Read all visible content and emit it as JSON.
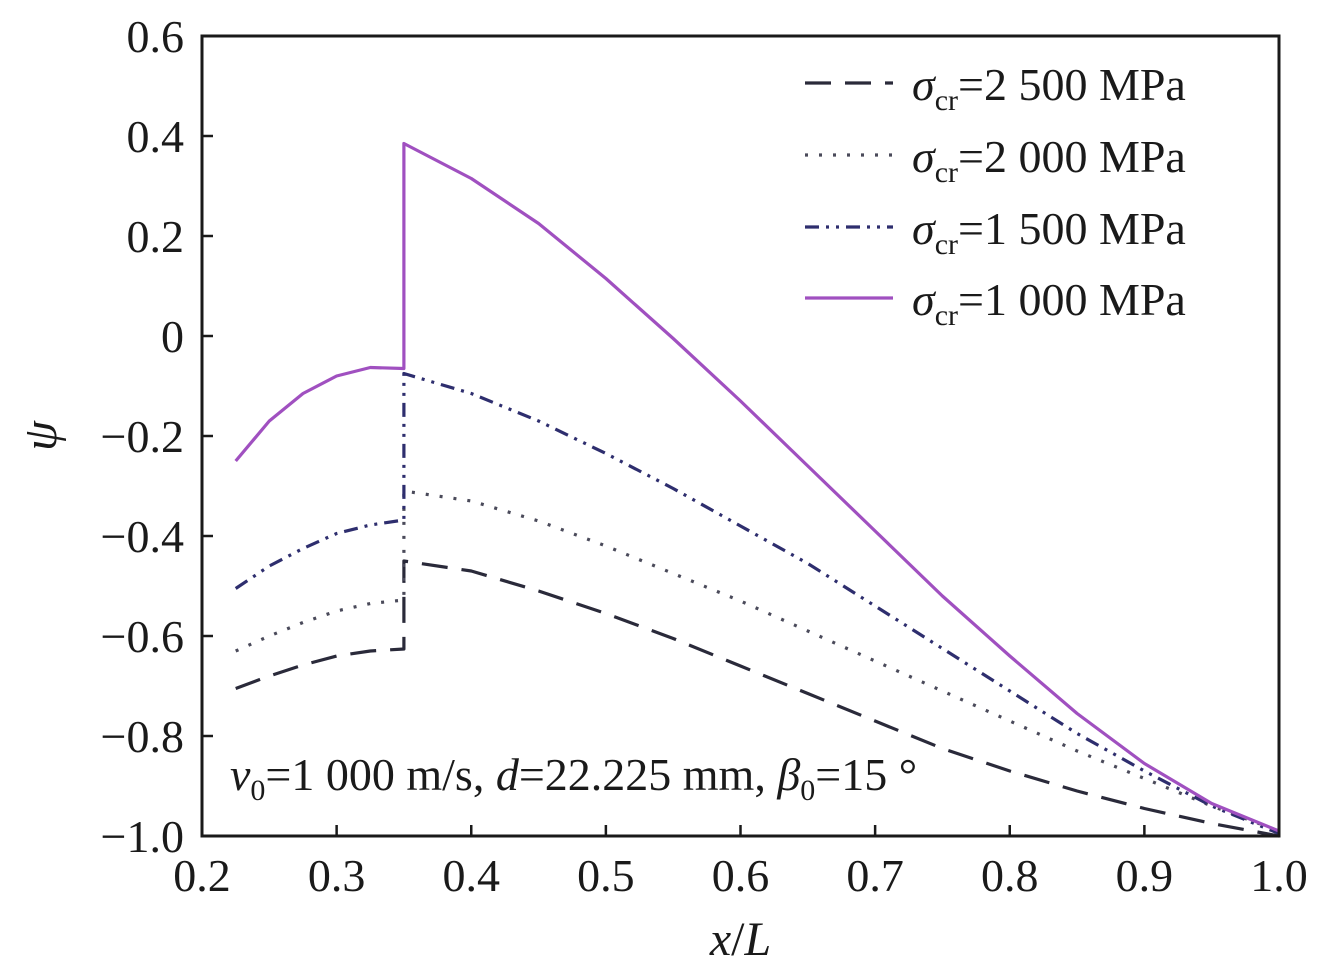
{
  "chart_data": {
    "type": "line",
    "xlabel_var": "x",
    "xlabel_sep": "/",
    "xlabel_ref": "L",
    "ylabel": "ψ",
    "xlim": [
      0.2,
      1.0
    ],
    "ylim": [
      -1.0,
      0.6
    ],
    "x_ticks": [
      0.2,
      0.3,
      0.4,
      0.5,
      0.6,
      0.7,
      0.8,
      0.9,
      1.0
    ],
    "x_tick_labels": [
      "0.2",
      "0.3",
      "0.4",
      "0.5",
      "0.6",
      "0.7",
      "0.8",
      "0.9",
      "1.0"
    ],
    "y_ticks": [
      0.6,
      0.4,
      0.2,
      0,
      -0.2,
      -0.4,
      -0.6,
      -0.8,
      -1.0
    ],
    "y_tick_labels": [
      "0.6",
      "0.4",
      "0.2",
      "0",
      "−0.2",
      "−0.4",
      "−0.6",
      "−0.8",
      "−1.0"
    ],
    "grid": false,
    "legend_position": "top-right",
    "series": [
      {
        "legend_symbol": "σ",
        "legend_sub": "cr",
        "legend_value": "=2 500 MPa",
        "color": "#2a2a3a",
        "dash": "26 14",
        "points": [
          [
            0.225,
            -0.705
          ],
          [
            0.25,
            -0.68
          ],
          [
            0.275,
            -0.658
          ],
          [
            0.3,
            -0.64
          ],
          [
            0.325,
            -0.63
          ],
          [
            0.35,
            -0.626
          ],
          [
            0.35,
            -0.45
          ],
          [
            0.4,
            -0.47
          ],
          [
            0.45,
            -0.51
          ],
          [
            0.5,
            -0.555
          ],
          [
            0.55,
            -0.605
          ],
          [
            0.6,
            -0.66
          ],
          [
            0.65,
            -0.715
          ],
          [
            0.7,
            -0.77
          ],
          [
            0.75,
            -0.825
          ],
          [
            0.8,
            -0.87
          ],
          [
            0.85,
            -0.91
          ],
          [
            0.9,
            -0.945
          ],
          [
            0.95,
            -0.975
          ],
          [
            1.0,
            -1.0
          ]
        ]
      },
      {
        "legend_symbol": "σ",
        "legend_sub": "cr",
        "legend_value": "=2 000 MPa",
        "color": "#4a4a5a",
        "dash": "3 11",
        "points": [
          [
            0.225,
            -0.63
          ],
          [
            0.25,
            -0.6
          ],
          [
            0.275,
            -0.573
          ],
          [
            0.3,
            -0.55
          ],
          [
            0.325,
            -0.535
          ],
          [
            0.35,
            -0.528
          ],
          [
            0.35,
            -0.31
          ],
          [
            0.4,
            -0.33
          ],
          [
            0.45,
            -0.37
          ],
          [
            0.5,
            -0.42
          ],
          [
            0.55,
            -0.475
          ],
          [
            0.6,
            -0.53
          ],
          [
            0.65,
            -0.59
          ],
          [
            0.7,
            -0.65
          ],
          [
            0.75,
            -0.71
          ],
          [
            0.8,
            -0.77
          ],
          [
            0.85,
            -0.83
          ],
          [
            0.9,
            -0.885
          ],
          [
            0.95,
            -0.94
          ],
          [
            1.0,
            -0.99
          ]
        ]
      },
      {
        "legend_symbol": "σ",
        "legend_sub": "cr",
        "legend_value": "=1 500 MPa",
        "color": "#2e2e6e",
        "dash": "14 7 3 7 3 7",
        "points": [
          [
            0.225,
            -0.505
          ],
          [
            0.25,
            -0.46
          ],
          [
            0.275,
            -0.425
          ],
          [
            0.3,
            -0.395
          ],
          [
            0.325,
            -0.378
          ],
          [
            0.35,
            -0.368
          ],
          [
            0.35,
            -0.075
          ],
          [
            0.4,
            -0.115
          ],
          [
            0.45,
            -0.17
          ],
          [
            0.5,
            -0.235
          ],
          [
            0.55,
            -0.305
          ],
          [
            0.6,
            -0.38
          ],
          [
            0.65,
            -0.455
          ],
          [
            0.7,
            -0.54
          ],
          [
            0.75,
            -0.625
          ],
          [
            0.8,
            -0.71
          ],
          [
            0.85,
            -0.795
          ],
          [
            0.9,
            -0.87
          ],
          [
            0.95,
            -0.94
          ],
          [
            1.0,
            -0.995
          ]
        ]
      },
      {
        "legend_symbol": "σ",
        "legend_sub": "cr",
        "legend_value": "=1 000 MPa",
        "color": "#a050c0",
        "dash": "",
        "points": [
          [
            0.225,
            -0.25
          ],
          [
            0.25,
            -0.17
          ],
          [
            0.275,
            -0.115
          ],
          [
            0.3,
            -0.08
          ],
          [
            0.325,
            -0.063
          ],
          [
            0.35,
            -0.065
          ],
          [
            0.35,
            0.385
          ],
          [
            0.4,
            0.315
          ],
          [
            0.45,
            0.225
          ],
          [
            0.5,
            0.115
          ],
          [
            0.55,
            -0.005
          ],
          [
            0.6,
            -0.13
          ],
          [
            0.65,
            -0.26
          ],
          [
            0.7,
            -0.39
          ],
          [
            0.75,
            -0.52
          ],
          [
            0.8,
            -0.64
          ],
          [
            0.85,
            -0.755
          ],
          [
            0.9,
            -0.855
          ],
          [
            0.95,
            -0.935
          ],
          [
            1.0,
            -0.99
          ]
        ]
      }
    ],
    "annotation": {
      "v_sym": "v",
      "v_sub": "0",
      "v_val": "=1 000 m/s, ",
      "d_sym": "d",
      "d_val": "=22.225 mm, ",
      "b_sym": "β",
      "b_sub": "0",
      "b_val": "=15 °"
    }
  }
}
